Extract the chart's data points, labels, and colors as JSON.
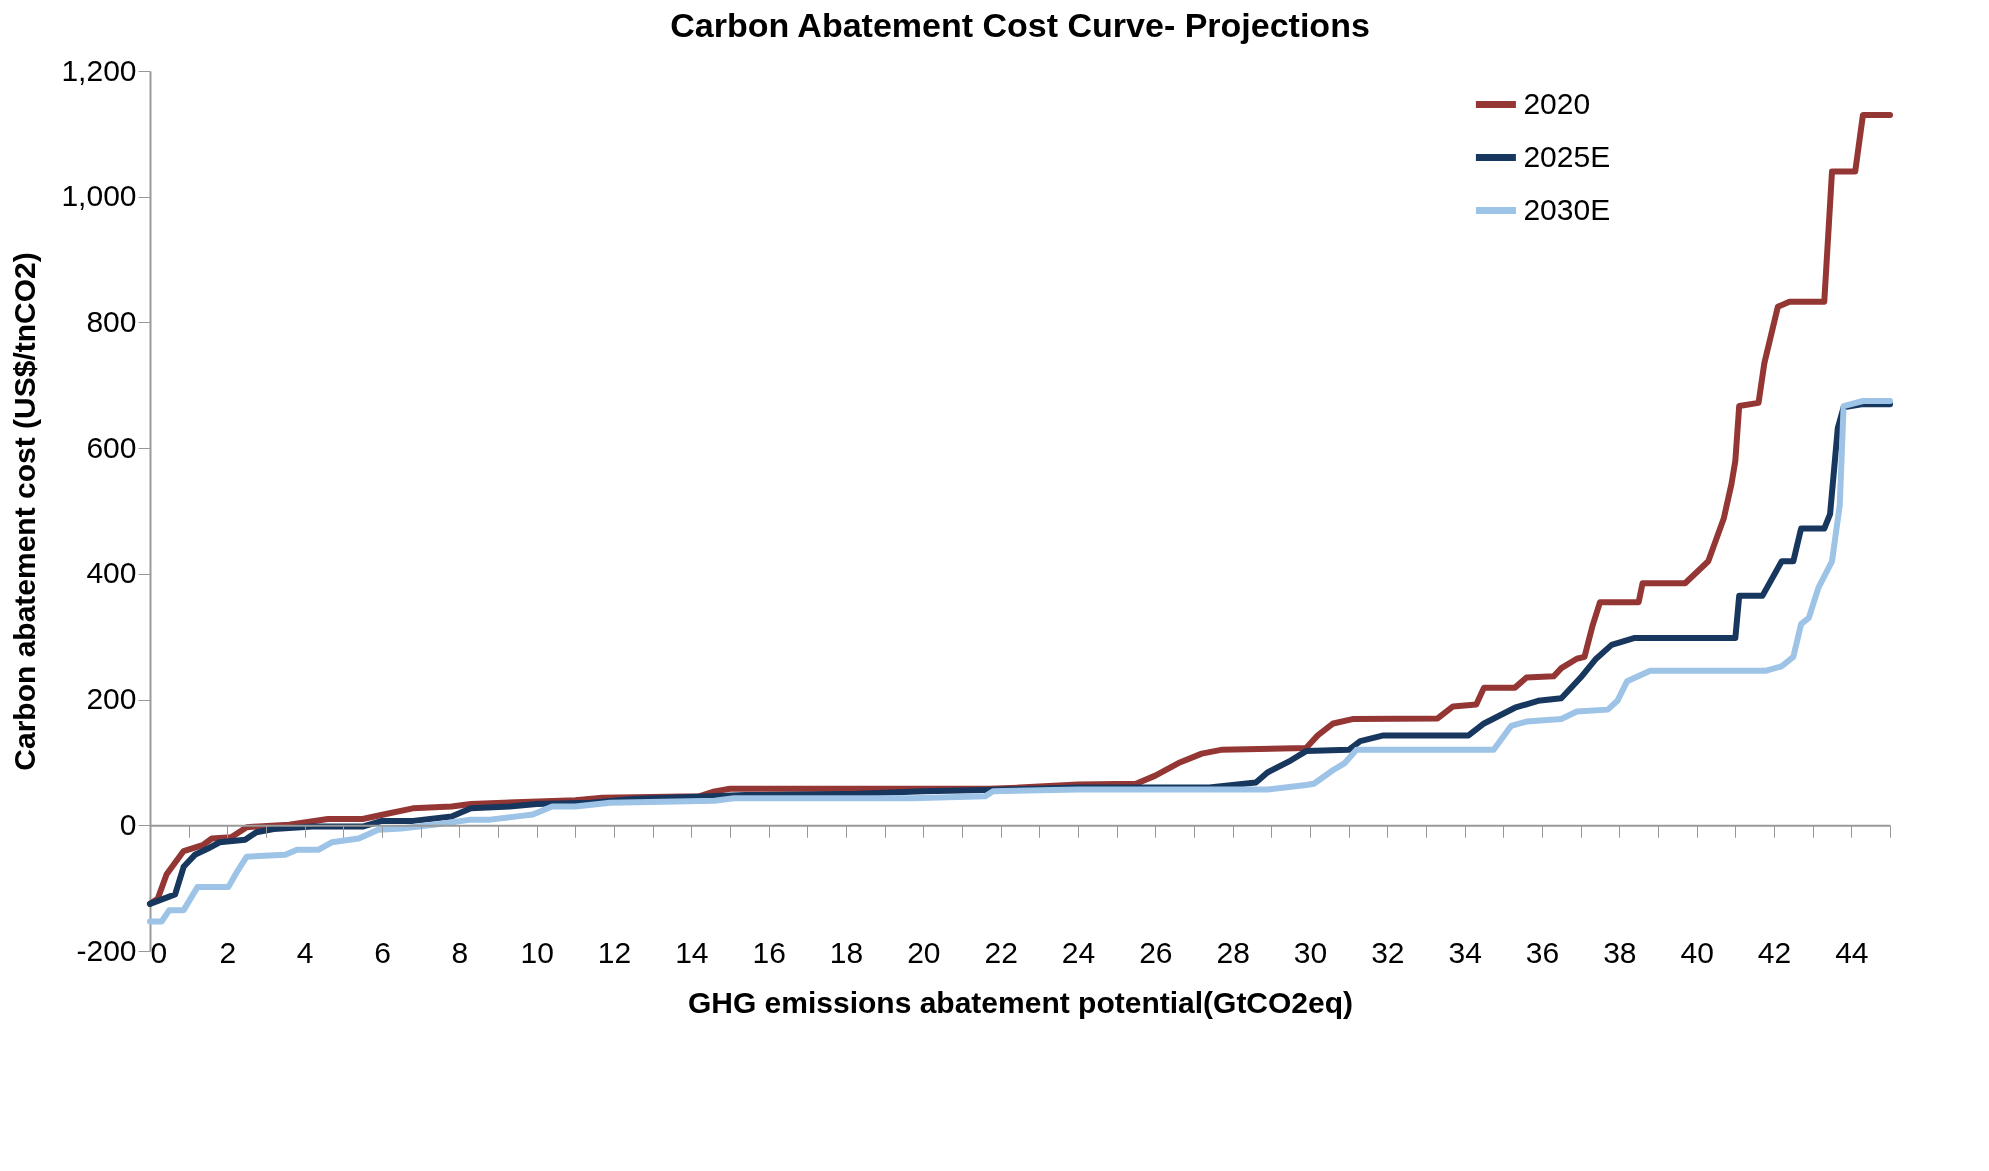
{
  "chart_data": {
    "type": "line",
    "title": "Carbon Abatement Cost Curve- Projections",
    "xlabel": "GHG emissions abatement  potential(GtCO2eq)",
    "ylabel": "Carbon abatement cost (US$/tnCO2)",
    "legend": "top right",
    "line_style": "solid",
    "xlim": [
      0,
      45
    ],
    "ylim": [
      -200,
      1200
    ],
    "xticks": [
      0,
      {
        "value": 1,
        "label": null
      },
      2,
      {
        "value": 3,
        "label": null
      },
      4,
      {
        "value": 5,
        "label": null
      },
      6,
      {
        "value": 7,
        "label": null
      },
      8,
      {
        "value": 9,
        "label": null
      },
      10,
      {
        "value": 11,
        "label": null
      },
      12,
      {
        "value": 13,
        "label": null
      },
      14,
      {
        "value": 15,
        "label": null
      },
      16,
      {
        "value": 17,
        "label": null
      },
      18,
      {
        "value": 19,
        "label": null
      },
      20,
      {
        "value": 21,
        "label": null
      },
      22,
      {
        "value": 23,
        "label": null
      },
      24,
      {
        "value": 25,
        "label": null
      },
      26,
      {
        "value": 27,
        "label": null
      },
      28,
      {
        "value": 29,
        "label": null
      },
      30,
      {
        "value": 31,
        "label": null
      },
      32,
      {
        "value": 33,
        "label": null
      },
      34,
      {
        "value": 35,
        "label": null
      },
      36,
      {
        "value": 37,
        "label": null
      },
      38,
      {
        "value": 39,
        "label": null
      },
      40,
      {
        "value": 41,
        "label": null
      },
      42,
      {
        "value": 43,
        "label": null
      },
      44,
      {
        "value": 45,
        "label": null
      }
    ],
    "yticks": [
      -200,
      0,
      200,
      400,
      600,
      800,
      {
        "value": 1000,
        "label": "1,000"
      },
      {
        "value": 1200,
        "label": "1,200"
      }
    ],
    "series": [
      {
        "name": "2020",
        "color": "#943634",
        "x": [
          0,
          0.2,
          0.43,
          0.87,
          1.38,
          1.6,
          2.1,
          2.5,
          3.6,
          4.6,
          5.5,
          6.1,
          6.8,
          7.8,
          8.3,
          11,
          11.7,
          14.2,
          14.6,
          15,
          21.7,
          22.5,
          24,
          25.5,
          26,
          26.6,
          27.2,
          27.7,
          29.9,
          30.2,
          30.6,
          31.1,
          33.3,
          33.7,
          34.3,
          34.5,
          35.3,
          35.6,
          36.3,
          36.5,
          36.9,
          37.1,
          37.3,
          37.5,
          38.5,
          38.6,
          39.7,
          40.3,
          40.7,
          40.9,
          41,
          41.1,
          41.6,
          41.75,
          42.1,
          42.4,
          43.3,
          43.5,
          44.1,
          44.3,
          45
        ],
        "values": [
          -125,
          -117,
          -78,
          -41,
          -31,
          -21,
          -19,
          -3,
          1,
          10,
          10,
          18,
          27,
          30,
          34,
          40,
          44,
          46,
          54,
          58,
          58,
          60,
          65,
          66,
          79,
          99,
          114,
          120,
          123,
          143,
          162,
          169,
          170,
          189,
          192,
          219,
          219,
          235,
          237,
          250,
          265,
          268,
          316,
          355,
          355,
          385,
          385,
          420,
          488,
          543,
          580,
          667,
          672,
          735,
          825,
          833,
          833,
          1040,
          1040,
          1130,
          1130
        ]
      },
      {
        "name": "2025E",
        "color": "#17375e",
        "x": [
          0,
          0.65,
          0.87,
          1.16,
          1.5,
          1.8,
          2.46,
          2.75,
          3.2,
          4.2,
          5.5,
          6,
          6.8,
          7.8,
          8.3,
          9.3,
          10,
          11.4,
          12.5,
          15.4,
          18.3,
          20,
          21.6,
          24,
          27.4,
          28.6,
          28.9,
          29.5,
          29.9,
          31,
          31.3,
          31.9,
          34.1,
          34.5,
          35.3,
          35.9,
          36.5,
          37,
          37.4,
          37.8,
          38.4,
          41,
          41.1,
          41.7,
          42.2,
          42.5,
          42.7,
          43.3,
          43.45,
          43.65,
          43.8,
          44.3,
          45
        ],
        "values": [
          -125,
          -110,
          -66,
          -47,
          -37,
          -27,
          -23,
          -11,
          -6,
          -2,
          -2,
          7,
          7,
          14,
          27,
          30,
          34,
          36,
          42,
          48,
          50,
          54,
          56,
          60,
          60,
          68,
          84,
          103,
          118,
          120,
          134,
          143,
          143,
          162,
          187,
          198,
          202,
          235,
          265,
          287,
          298,
          298,
          365,
          365,
          420,
          420,
          472,
          472,
          495,
          632,
          665,
          670,
          670
        ]
      },
      {
        "name": "2030E",
        "color": "#9dc3e6",
        "x": [
          0,
          0.3,
          0.5,
          0.87,
          1.23,
          2.03,
          2.25,
          2.5,
          3.5,
          3.8,
          4.35,
          4.7,
          5.4,
          5.9,
          6.5,
          7.5,
          8.3,
          8.8,
          9.6,
          9.9,
          10.4,
          11,
          11.9,
          14.6,
          15.1,
          19.7,
          21.6,
          21.8,
          24,
          28.9,
          29.9,
          30.1,
          30.6,
          30.9,
          31.2,
          34.75,
          35.2,
          35.6,
          36.5,
          36.9,
          37.7,
          37.95,
          38.2,
          38.8,
          41.8,
          42.2,
          42.5,
          42.7,
          42.9,
          43.15,
          43.5,
          43.7,
          43.8,
          44.3,
          45
        ],
        "values": [
          -153,
          -153,
          -135,
          -135,
          -98,
          -98,
          -74,
          -50,
          -47,
          -39,
          -39,
          -27,
          -21,
          -7,
          -5,
          2,
          9,
          9,
          15,
          17,
          30,
          30,
          36,
          39,
          43,
          43,
          46,
          54,
          57,
          57,
          64,
          66,
          88,
          99,
          120,
          120,
          158,
          165,
          169,
          181,
          184,
          198,
          229,
          246,
          246,
          253,
          268,
          320,
          330,
          378,
          420,
          509,
          667,
          675,
          675
        ]
      }
    ]
  }
}
